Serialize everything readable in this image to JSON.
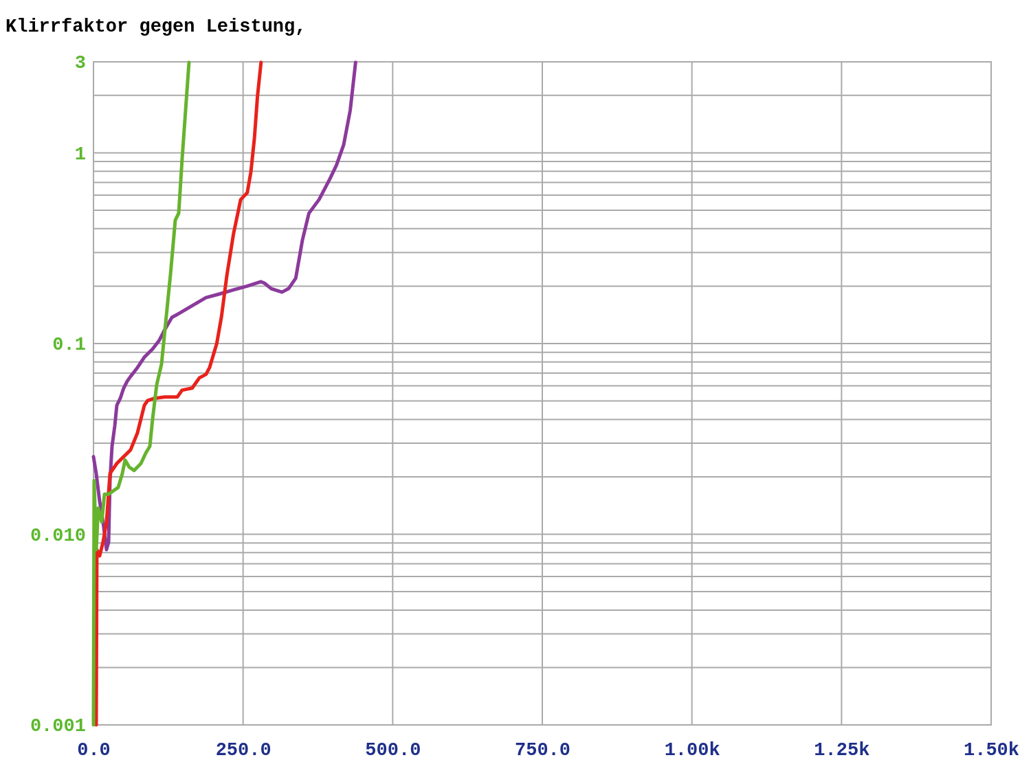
{
  "chart_data": {
    "type": "line",
    "title": "Klirrfaktor gegen Leistung,",
    "log": "y",
    "grid": true,
    "xlim": [
      0,
      1500
    ],
    "ylim": [
      0.001,
      3
    ],
    "xticks": [
      {
        "value": 0,
        "label": "0.0"
      },
      {
        "value": 250,
        "label": "250.0"
      },
      {
        "value": 500,
        "label": "500.0"
      },
      {
        "value": 750,
        "label": "750.0"
      },
      {
        "value": 1000,
        "label": "1.00k"
      },
      {
        "value": 1250,
        "label": "1.25k"
      },
      {
        "value": 1500,
        "label": "1.50k"
      }
    ],
    "yticks": [
      {
        "value": 0.001,
        "label": "0.001"
      },
      {
        "value": 0.002,
        "label": null
      },
      {
        "value": 0.003,
        "label": null
      },
      {
        "value": 0.004,
        "label": null
      },
      {
        "value": 0.005,
        "label": null
      },
      {
        "value": 0.006,
        "label": null
      },
      {
        "value": 0.007,
        "label": null
      },
      {
        "value": 0.008,
        "label": null
      },
      {
        "value": 0.009,
        "label": null
      },
      {
        "value": 0.01,
        "label": "0.010"
      },
      {
        "value": 0.02,
        "label": null
      },
      {
        "value": 0.03,
        "label": null
      },
      {
        "value": 0.04,
        "label": null
      },
      {
        "value": 0.05,
        "label": null
      },
      {
        "value": 0.06,
        "label": null
      },
      {
        "value": 0.07,
        "label": null
      },
      {
        "value": 0.08,
        "label": null
      },
      {
        "value": 0.09,
        "label": null
      },
      0.1,
      {
        "value": 0.2,
        "label": null
      },
      {
        "value": 0.3,
        "label": null
      },
      {
        "value": 0.4,
        "label": null
      },
      {
        "value": 0.5,
        "label": null
      },
      {
        "value": 0.6,
        "label": null
      },
      {
        "value": 0.7,
        "label": null
      },
      {
        "value": 0.8,
        "label": null
      },
      {
        "value": 0.9,
        "label": null
      },
      1,
      {
        "value": 2,
        "label": null
      },
      3
    ],
    "series": [
      {
        "color": "#8b3a9b",
        "x": [
          0,
          4.6,
          10.3,
          16,
          21.8,
          25.3,
          27.6,
          31,
          35.6,
          39,
          44.8,
          50.5,
          56.3,
          62,
          73.5,
          85,
          98.7,
          110,
          119,
          131,
          145,
          165,
          188,
          211,
          234,
          257,
          280,
          286,
          297,
          315,
          326,
          338,
          349,
          360,
          377,
          395,
          406,
          418,
          429,
          438
        ],
        "values": [
          0.0255,
          0.0208,
          0.0149,
          0.0116,
          0.0083,
          0.0091,
          0.0191,
          0.0289,
          0.037,
          0.0474,
          0.0516,
          0.0584,
          0.0634,
          0.0672,
          0.0748,
          0.0848,
          0.0936,
          0.104,
          0.118,
          0.137,
          0.145,
          0.158,
          0.174,
          0.182,
          0.191,
          0.2,
          0.211,
          0.207,
          0.194,
          0.186,
          0.194,
          0.22,
          0.347,
          0.482,
          0.569,
          0.73,
          0.861,
          1.1,
          1.67,
          2.98
        ]
      },
      {
        "color": "#e8221b",
        "x": [
          4.6,
          5.7,
          10.3,
          16,
          21.8,
          27.6,
          39,
          50.5,
          62,
          73.5,
          85,
          90.7,
          102,
          119,
          140,
          148,
          165,
          177,
          188,
          194,
          206,
          214,
          223,
          234,
          246,
          257,
          263,
          269,
          274,
          280
        ],
        "values": [
          0.001,
          0.0083,
          0.0077,
          0.0091,
          0.0116,
          0.0208,
          0.0235,
          0.0255,
          0.0277,
          0.034,
          0.0474,
          0.0503,
          0.0516,
          0.0524,
          0.0524,
          0.0569,
          0.0584,
          0.0661,
          0.0689,
          0.0748,
          0.1,
          0.139,
          0.229,
          0.376,
          0.569,
          0.618,
          0.793,
          1.2,
          1.97,
          2.98
        ]
      },
      {
        "color": "#66b32e",
        "x": [
          0,
          1.1,
          4.6,
          8,
          13.8,
          18.4,
          25.3,
          33.3,
          41.3,
          48.2,
          52.8,
          59.7,
          67.8,
          79.3,
          87.3,
          94.2,
          98.8,
          105.7,
          113.7,
          119.4,
          128.6,
          136.7,
          142.4,
          148.2,
          153.9,
          159.6
        ],
        "values": [
          0.001,
          0.0191,
          0.0083,
          0.0137,
          0.0116,
          0.0162,
          0.0162,
          0.0169,
          0.0176,
          0.0208,
          0.0245,
          0.0225,
          0.0216,
          0.0235,
          0.0266,
          0.0289,
          0.0402,
          0.0609,
          0.078,
          0.118,
          0.229,
          0.444,
          0.482,
          0.936,
          1.67,
          2.98
        ]
      }
    ]
  }
}
